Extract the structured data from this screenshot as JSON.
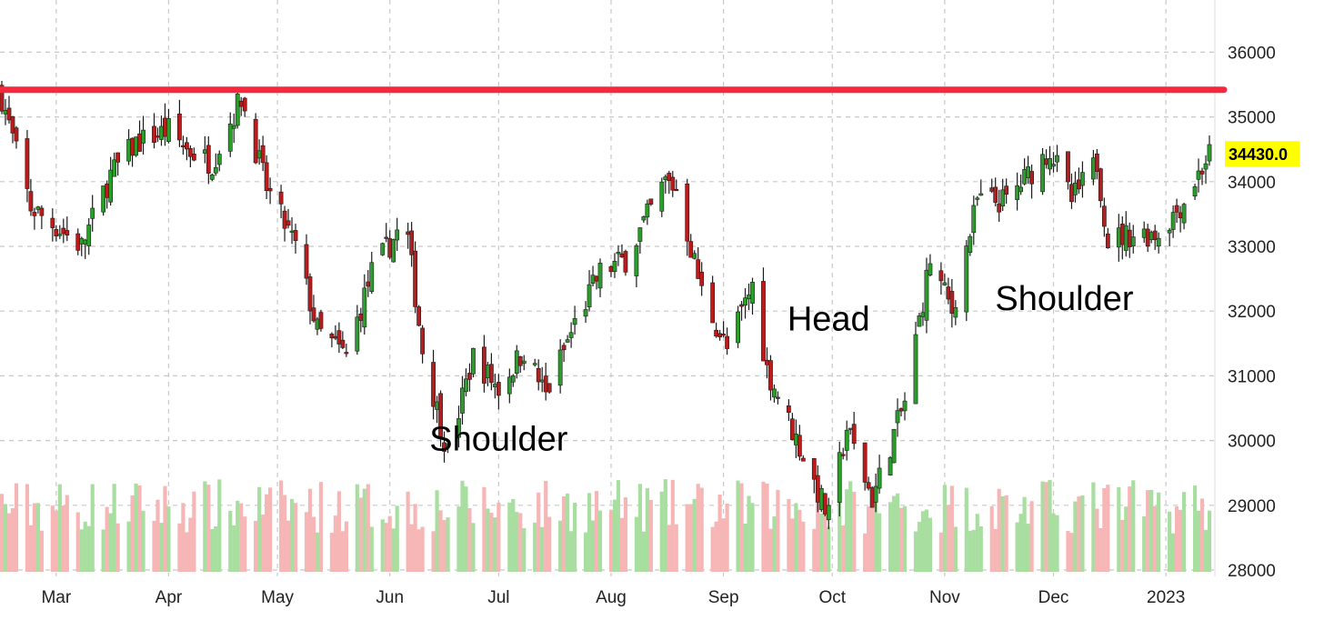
{
  "chart_data": {
    "type": "candlestick",
    "title": "",
    "xlabel": "",
    "ylabel": "",
    "ylim": [
      28000,
      36600
    ],
    "y_ticks": [
      "28000",
      "29000",
      "30000",
      "31000",
      "32000",
      "33000",
      "34000",
      "35000",
      "36000"
    ],
    "x_ticks": [
      {
        "label": "Mar",
        "date": "2022-03-01"
      },
      {
        "label": "Apr",
        "date": "2022-04-01"
      },
      {
        "label": "May",
        "date": "2022-05-01"
      },
      {
        "label": "Jun",
        "date": "2022-06-01"
      },
      {
        "label": "Jul",
        "date": "2022-07-01"
      },
      {
        "label": "Aug",
        "date": "2022-08-01"
      },
      {
        "label": "Sep",
        "date": "2022-09-01"
      },
      {
        "label": "Oct",
        "date": "2022-10-01"
      },
      {
        "label": "Nov",
        "date": "2022-11-01"
      },
      {
        "label": "Dec",
        "date": "2022-12-01"
      },
      {
        "label": "2023",
        "date": "2023-01-01"
      }
    ],
    "grid": true,
    "up_color": "#2a9d2a",
    "down_color": "#b81c1c",
    "volume_up_color": "#a8dea0",
    "volume_down_color": "#f7b6b6",
    "resistance": {
      "value": 35420,
      "color": "#f5293e"
    },
    "last_price": {
      "label": "34430.0",
      "value": 34430,
      "bg": "#ffff00"
    },
    "annotations": [
      {
        "text": "Shoulder",
        "date": "2022-07-01",
        "y": 29850
      },
      {
        "text": "Head",
        "date": "2022-09-30",
        "y": 31700
      },
      {
        "text": "Shoulder",
        "date": "2022-12-04",
        "y": 32020
      }
    ],
    "anchors": [
      [
        "2022-02-14",
        35300
      ],
      [
        "2022-02-22",
        33600
      ],
      [
        "2022-03-08",
        33000
      ],
      [
        "2022-03-16",
        34100
      ],
      [
        "2022-03-23",
        34600
      ],
      [
        "2022-04-01",
        34800
      ],
      [
        "2022-04-06",
        34500
      ],
      [
        "2022-04-13",
        34300
      ],
      [
        "2022-04-21",
        35300
      ],
      [
        "2022-04-28",
        33900
      ],
      [
        "2022-05-06",
        33000
      ],
      [
        "2022-05-12",
        31700
      ],
      [
        "2022-05-20",
        31300
      ],
      [
        "2022-05-27",
        32600
      ],
      [
        "2022-06-03",
        33200
      ],
      [
        "2022-06-06",
        33100
      ],
      [
        "2022-06-10",
        31400
      ],
      [
        "2022-06-17",
        29800
      ],
      [
        "2022-06-24",
        31300
      ],
      [
        "2022-07-01",
        30800
      ],
      [
        "2022-07-08",
        31400
      ],
      [
        "2022-07-14",
        30700
      ],
      [
        "2022-07-22",
        31800
      ],
      [
        "2022-07-29",
        32600
      ],
      [
        "2022-08-05",
        32800
      ],
      [
        "2022-08-16",
        34000
      ],
      [
        "2022-08-19",
        33900
      ],
      [
        "2022-08-26",
        32300
      ],
      [
        "2022-09-02",
        31400
      ],
      [
        "2022-09-09",
        32400
      ],
      [
        "2022-09-13",
        31100
      ],
      [
        "2022-09-22",
        29900
      ],
      [
        "2022-09-30",
        28800
      ],
      [
        "2022-10-05",
        30200
      ],
      [
        "2022-10-12",
        29100
      ],
      [
        "2022-10-21",
        30600
      ],
      [
        "2022-10-28",
        32800
      ],
      [
        "2022-11-03",
        32000
      ],
      [
        "2022-11-10",
        33700
      ],
      [
        "2022-11-18",
        33700
      ],
      [
        "2022-11-30",
        34500
      ],
      [
        "2022-12-06",
        33700
      ],
      [
        "2022-12-13",
        34300
      ],
      [
        "2022-12-16",
        33100
      ],
      [
        "2022-12-23",
        33200
      ],
      [
        "2022-12-30",
        33200
      ],
      [
        "2023-01-06",
        33700
      ],
      [
        "2023-01-13",
        34430
      ]
    ]
  }
}
